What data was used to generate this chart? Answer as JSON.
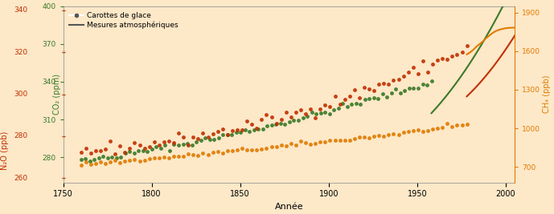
{
  "title": "",
  "xlabel": "Année",
  "ylabel_left_co2": "CO₂ (ppm)",
  "ylabel_right_ch4": "CH₄ (ppb)",
  "ylabel_left_n2o": "N₂O (ppb)",
  "legend_dots": "Carottes de glace",
  "legend_line": "Mesures atmosphériques",
  "background_color": "#fde8c8",
  "co2_color": "#3a7a28",
  "ch4_color": "#e07b00",
  "n2o_color": "#c03000",
  "xlim": [
    1750,
    2005
  ],
  "co2_ylim": [
    260,
    400
  ],
  "ch4_ylim": [
    600,
    1950
  ],
  "n2o_ylim": [
    260,
    340
  ],
  "co2_yticks": [
    280,
    310,
    340,
    370,
    400
  ],
  "ch4_yticks": [
    700,
    1000,
    1300,
    1600,
    1900
  ],
  "n2o_yticks": [
    260,
    280,
    300,
    320,
    340
  ],
  "xticks": [
    1750,
    1800,
    1850,
    1900,
    1950,
    2000
  ]
}
